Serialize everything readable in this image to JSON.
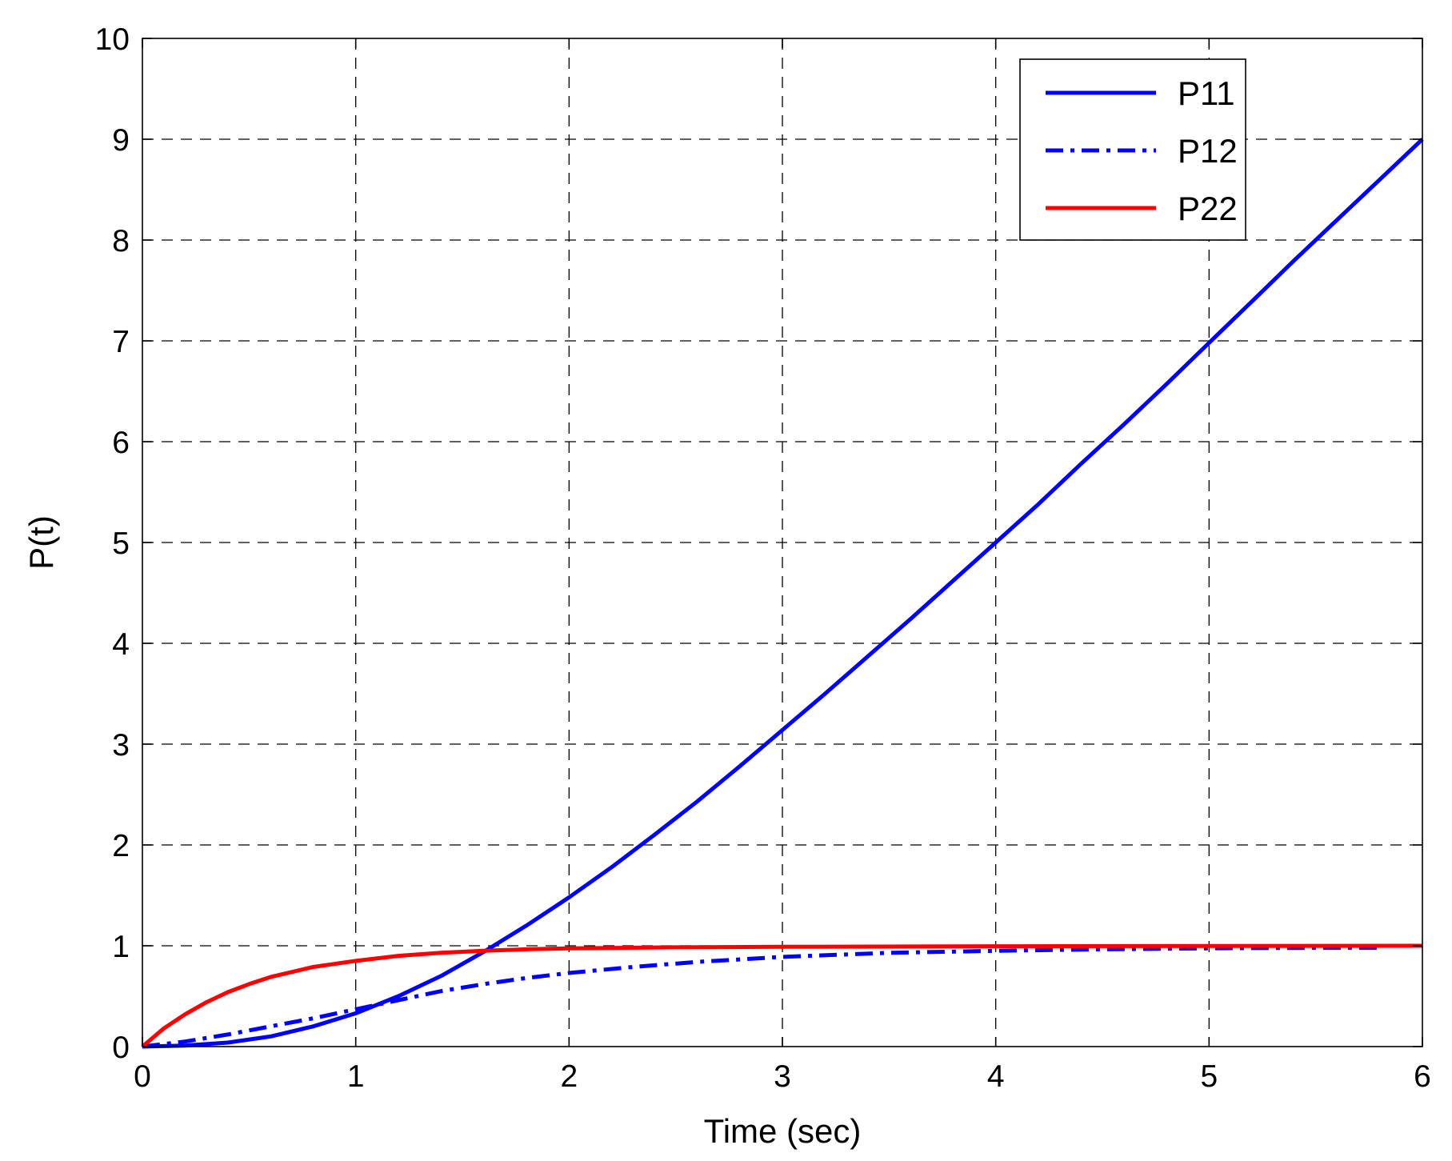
{
  "chart_data": {
    "type": "line",
    "xlabel": "Time (sec)",
    "ylabel": "P(t)",
    "xlim": [
      0,
      6
    ],
    "ylim": [
      0,
      10
    ],
    "xticks": [
      0,
      1,
      2,
      3,
      4,
      5,
      6
    ],
    "yticks": [
      0,
      1,
      2,
      3,
      4,
      5,
      6,
      7,
      8,
      9,
      10
    ],
    "grid": true,
    "legend_position": "top-right",
    "series": [
      {
        "name": "P11",
        "color": "#0000ff",
        "dash": "solid",
        "x": [
          0,
          0.2,
          0.4,
          0.6,
          0.8,
          1.0,
          1.2,
          1.4,
          1.6,
          1.8,
          2.0,
          2.2,
          2.4,
          2.6,
          2.8,
          3.0,
          3.2,
          3.4,
          3.6,
          3.8,
          4.0,
          4.2,
          4.4,
          4.6,
          4.8,
          5.0,
          5.2,
          5.4,
          5.6,
          5.8,
          6.0
        ],
        "y": [
          0,
          0.01,
          0.04,
          0.1,
          0.2,
          0.33,
          0.5,
          0.7,
          0.94,
          1.2,
          1.48,
          1.78,
          2.1,
          2.43,
          2.78,
          3.14,
          3.5,
          3.87,
          4.24,
          4.62,
          5.0,
          5.38,
          5.78,
          6.17,
          6.57,
          6.98,
          7.39,
          7.8,
          8.2,
          8.6,
          9.0
        ]
      },
      {
        "name": "P12",
        "color": "#0000ff",
        "dash": "dashdot",
        "x": [
          0,
          0.2,
          0.4,
          0.6,
          0.8,
          1.0,
          1.2,
          1.4,
          1.6,
          1.8,
          2.0,
          2.3,
          2.6,
          3.0,
          3.5,
          4.0,
          4.5,
          5.0,
          5.5,
          5.8
        ],
        "y": [
          0,
          0.05,
          0.12,
          0.2,
          0.28,
          0.37,
          0.46,
          0.55,
          0.62,
          0.68,
          0.73,
          0.79,
          0.84,
          0.89,
          0.93,
          0.95,
          0.965,
          0.975,
          0.98,
          0.98
        ]
      },
      {
        "name": "P22",
        "color": "#ff0000",
        "dash": "solid",
        "x": [
          0,
          0.1,
          0.2,
          0.3,
          0.4,
          0.5,
          0.6,
          0.7,
          0.8,
          0.9,
          1.0,
          1.2,
          1.4,
          1.6,
          1.8,
          2.0,
          2.5,
          3.0,
          4.0,
          5.0,
          6.0
        ],
        "y": [
          0,
          0.18,
          0.32,
          0.44,
          0.54,
          0.62,
          0.69,
          0.74,
          0.79,
          0.82,
          0.85,
          0.9,
          0.93,
          0.95,
          0.965,
          0.975,
          0.985,
          0.99,
          0.995,
          0.998,
          1.0
        ]
      }
    ]
  }
}
